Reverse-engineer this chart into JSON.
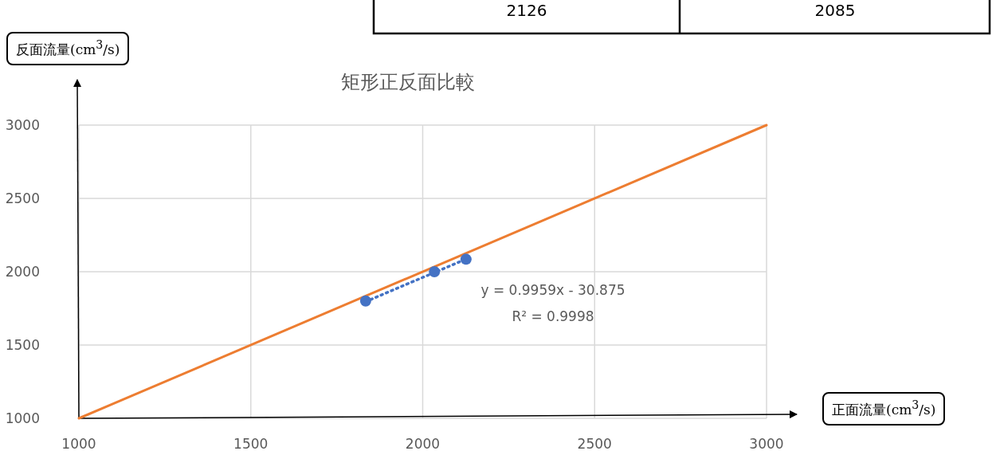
{
  "chart_data": {
    "type": "scatter",
    "title": "矩形正反面比較",
    "xlabel": "正面流量(cm$^{3}$/s)",
    "ylabel": "反面流量(cm$^{3}$/s)",
    "annotations": [
      "2126",
      "2085",
      "y = 0.9959x - 30.875",
      "R² = 0.9998"
    ],
    "series": [
      {
        "type": "line",
        "color": "#ed7d31",
        "x": [
          1000,
          3000
        ],
        "values": [
          1000,
          3000
        ],
        "line_style": "solid",
        "marker": "none"
      },
      {
        "type": "line",
        "color": "#4472c4",
        "x": [
          1834,
          2126
        ],
        "values": [
          1796,
          2086
        ],
        "line_style": "dotted",
        "marker": "none"
      },
      {
        "color": "#4472c4",
        "x": [
          1834,
          2034,
          2126
        ],
        "values": [
          1800,
          2000,
          2085
        ],
        "marker": "circle"
      }
    ],
    "xlim": [
      1000,
      3000
    ],
    "ylim": [
      1000,
      3000
    ],
    "xticks": [
      1000,
      1500,
      2000,
      2500,
      3000
    ],
    "yticks": [
      1000,
      1500,
      2000,
      2500,
      3000
    ],
    "grid": true
  }
}
